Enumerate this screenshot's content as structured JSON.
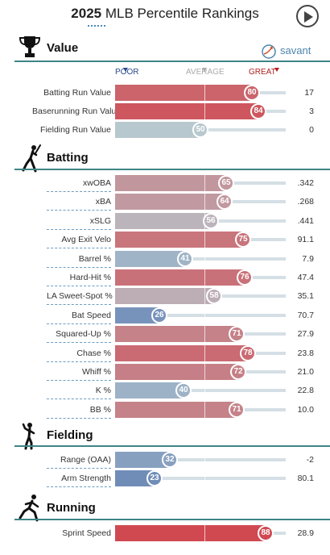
{
  "header": {
    "year": "2025",
    "title_rest": " MLB Percentile Rankings"
  },
  "brand": {
    "name": "savant"
  },
  "scale": {
    "poor": "POOR",
    "average": "AVERAGE",
    "great": "GREAT"
  },
  "colors": {
    "accent_rule": "#3d8587",
    "poor_end": "#325aa5",
    "great_end": "#d82129",
    "neutral": "#b8c8cf"
  },
  "sections": {
    "value": {
      "title": "Value",
      "icon": "trophy-icon"
    },
    "batting": {
      "title": "Batting",
      "icon": "batter-icon"
    },
    "fielding": {
      "title": "Fielding",
      "icon": "fielder-icon"
    },
    "running": {
      "title": "Running",
      "icon": "runner-icon"
    }
  },
  "value_rows": [
    {
      "label": "Batting Run Value",
      "percentile": 80,
      "stat": "17"
    },
    {
      "label": "Baserunning Run Value",
      "percentile": 84,
      "stat": "3"
    },
    {
      "label": "Fielding Run Value",
      "percentile": 50,
      "stat": "0"
    }
  ],
  "batting_rows": [
    {
      "label": "xwOBA",
      "percentile": 65,
      "stat": ".342"
    },
    {
      "label": "xBA",
      "percentile": 64,
      "stat": ".268"
    },
    {
      "label": "xSLG",
      "percentile": 56,
      "stat": ".441"
    },
    {
      "label": "Avg Exit Velo",
      "percentile": 75,
      "stat": "91.1"
    },
    {
      "label": "Barrel %",
      "percentile": 41,
      "stat": "7.9"
    },
    {
      "label": "Hard-Hit %",
      "percentile": 76,
      "stat": "47.4"
    },
    {
      "label": "LA Sweet-Spot %",
      "percentile": 58,
      "stat": "35.1"
    },
    {
      "label": "Bat Speed",
      "percentile": 26,
      "stat": "70.7"
    },
    {
      "label": "Squared-Up %",
      "percentile": 71,
      "stat": "27.9"
    },
    {
      "label": "Chase %",
      "percentile": 78,
      "stat": "23.8"
    },
    {
      "label": "Whiff %",
      "percentile": 72,
      "stat": "21.0"
    },
    {
      "label": "K %",
      "percentile": 40,
      "stat": "22.8"
    },
    {
      "label": "BB %",
      "percentile": 71,
      "stat": "10.0"
    }
  ],
  "fielding_rows": [
    {
      "label": "Range (OAA)",
      "percentile": 32,
      "stat": "-2"
    },
    {
      "label": "Arm Strength",
      "percentile": 23,
      "stat": "80.1"
    }
  ],
  "running_rows": [
    {
      "label": "Sprint Speed",
      "percentile": 88,
      "stat": "28.9"
    }
  ]
}
